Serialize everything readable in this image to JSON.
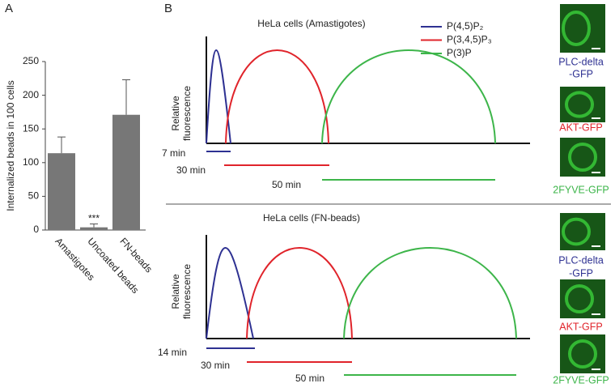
{
  "chart_data": {
    "type": "bar",
    "panel_label": "A",
    "ylabel": "Internalized beads in 100 cells",
    "categories": [
      "Amastigotes",
      "Uncoated beads",
      "FN-beads"
    ],
    "values": [
      114,
      4,
      171
    ],
    "errors": [
      24,
      5,
      52
    ],
    "significance": [
      null,
      "***",
      null
    ],
    "color": "#777777",
    "ylim": [
      0,
      250
    ],
    "yticks": [
      0,
      50,
      100,
      150,
      200,
      250
    ]
  },
  "panel_b": {
    "label": "B",
    "legend": [
      {
        "name": "P(4,5)P₂",
        "color": "#2e3192"
      },
      {
        "name": "P(3,4,5)P₃",
        "color": "#e0242b"
      },
      {
        "name": "P(3)P",
        "color": "#3db54a"
      }
    ],
    "panels": [
      {
        "title": "HeLa cells (Amastigotes)",
        "ylabel": [
          "Relative",
          "fluorescence"
        ],
        "durations": [
          "7 min",
          "30 min",
          "50 min"
        ],
        "cells": [
          {
            "label": [
              "PLC-delta",
              "-GFP"
            ],
            "color": "#2e3192"
          },
          {
            "label": [
              "AKT-GFP"
            ],
            "color": "#e0242b"
          },
          {
            "label": [
              "2FYVE-GFP"
            ],
            "color": "#3db54a"
          }
        ]
      },
      {
        "title": "HeLa cells (FN-beads)",
        "ylabel": [
          "Relative",
          "fluorescence"
        ],
        "durations": [
          "14 min",
          "30 min",
          "50 min"
        ],
        "cells": [
          {
            "label": [
              "PLC-delta",
              "-GFP"
            ],
            "color": "#2e3192"
          },
          {
            "label": [
              "AKT-GFP"
            ],
            "color": "#e0242b"
          },
          {
            "label": [
              "2FYVE-GFP"
            ],
            "color": "#3db54a"
          }
        ]
      }
    ]
  }
}
